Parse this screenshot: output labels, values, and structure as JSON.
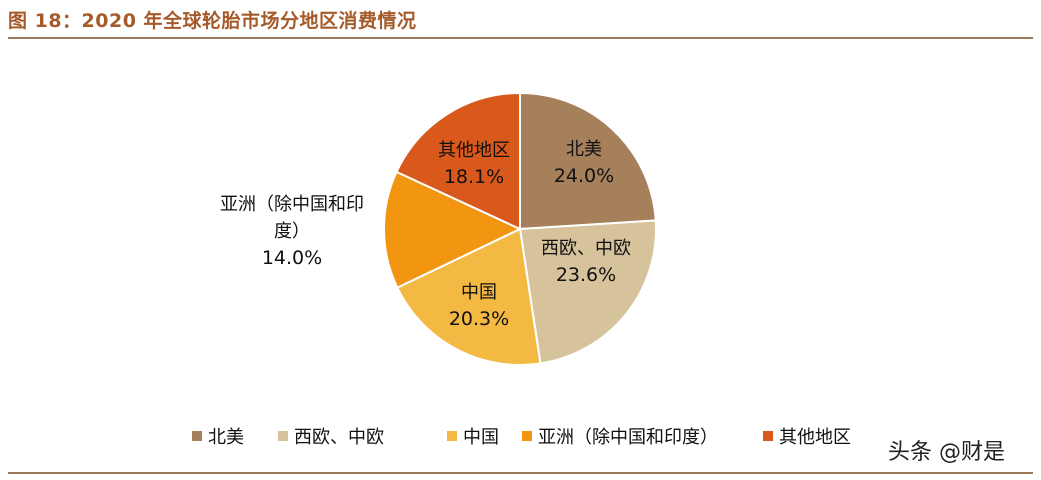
{
  "title": "图 18：2020 年全球轮胎市场分地区消费情况",
  "watermark": "头条 @财是",
  "chart_data": {
    "type": "pie",
    "title": "",
    "legend_position": "bottom",
    "slices": [
      {
        "label": "北美",
        "legend": "北美",
        "value": 24.0,
        "value_label": "24.0%",
        "color": "#a5805a",
        "label_lines": [
          "北美",
          "24.0%"
        ]
      },
      {
        "label": "西欧、中欧",
        "legend": "西欧、中欧",
        "value": 23.6,
        "value_label": "23.6%",
        "color": "#d6c39c",
        "label_lines": [
          "西欧、中欧",
          "23.6%"
        ]
      },
      {
        "label": "中国",
        "legend": "中国",
        "value": 20.3,
        "value_label": "20.3%",
        "color": "#f4b942",
        "label_lines": [
          "中国",
          "20.3%"
        ]
      },
      {
        "label": "亚洲（除中国和印度）",
        "legend": "亚洲（除中国和印度）",
        "value": 14.0,
        "value_label": "14.0%",
        "color": "#f29511",
        "label_lines": [
          "亚洲（除中国和印",
          "度）",
          "14.0%"
        ]
      },
      {
        "label": "其他地区",
        "legend": "其他地区",
        "value": 18.1,
        "value_label": "18.1%",
        "color": "#d9581c",
        "label_lines": [
          "其他地区",
          "18.1%"
        ]
      }
    ]
  }
}
